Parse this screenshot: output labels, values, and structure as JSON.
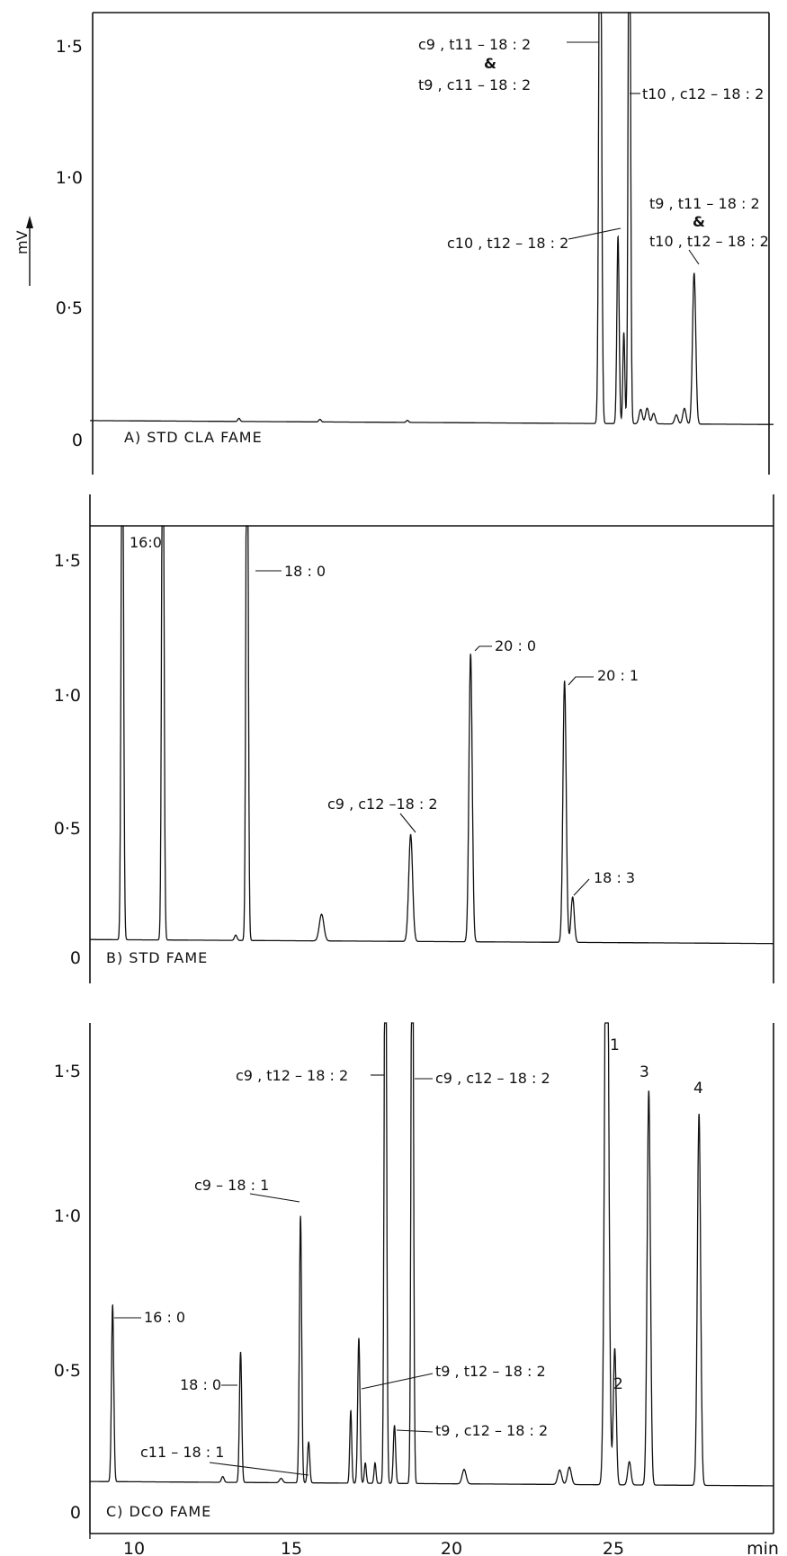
{
  "y_unit_label": "mV",
  "x_unit_label": "min",
  "chart_data": [
    {
      "type": "line",
      "panel_label": "A) STD CLA FAME",
      "ylim": [
        0,
        1.65
      ],
      "y_ticks": [
        "0",
        "0·5",
        "1·0",
        "1·5"
      ],
      "y_tick_values": [
        0,
        0.5,
        1.0,
        1.5
      ],
      "baseline": 0.09,
      "baseline_end": 0.075,
      "peaks": [
        {
          "rt": 13.4,
          "h": 0.012,
          "w": 0.035
        },
        {
          "rt": 15.9,
          "h": 0.01,
          "w": 0.035
        },
        {
          "rt": 18.6,
          "h": 0.008,
          "w": 0.035
        },
        {
          "rt": 24.55,
          "h": 2.5,
          "w": 0.04
        },
        {
          "rt": 25.1,
          "h": 0.72,
          "w": 0.035
        },
        {
          "rt": 25.28,
          "h": 0.35,
          "w": 0.03
        },
        {
          "rt": 25.45,
          "h": 2.4,
          "w": 0.035
        },
        {
          "rt": 25.8,
          "h": 0.055,
          "w": 0.05
        },
        {
          "rt": 26.0,
          "h": 0.06,
          "w": 0.05
        },
        {
          "rt": 26.2,
          "h": 0.04,
          "w": 0.05
        },
        {
          "rt": 26.9,
          "h": 0.035,
          "w": 0.05
        },
        {
          "rt": 27.15,
          "h": 0.06,
          "w": 0.05
        },
        {
          "rt": 27.45,
          "h": 0.58,
          "w": 0.05
        }
      ],
      "annotations": [
        {
          "text": "c9 , t11 – 18 : 2"
        },
        {
          "text": "&"
        },
        {
          "text": "t9 , c11 – 18 : 2"
        },
        {
          "text": "t10 , c12 – 18 : 2"
        },
        {
          "text": "c10 , t12 – 18 : 2"
        },
        {
          "text": "t9 , t11 – 18 : 2"
        },
        {
          "text": "&"
        },
        {
          "text": "t10 , t12 – 18 : 2"
        }
      ]
    },
    {
      "type": "line",
      "panel_label": "B) STD FAME",
      "ylim": [
        0,
        1.62
      ],
      "y_ticks": [
        "0",
        "0·5",
        "1·0",
        "1·5"
      ],
      "y_tick_values": [
        0,
        0.5,
        1.0,
        1.5
      ],
      "baseline": 0.07,
      "baseline_end": 0.055,
      "peaks": [
        {
          "rt": 9.8,
          "h": 2.3,
          "w": 0.035
        },
        {
          "rt": 11.05,
          "h": 2.3,
          "w": 0.035
        },
        {
          "rt": 13.3,
          "h": 0.02,
          "w": 0.04
        },
        {
          "rt": 13.65,
          "h": 2.3,
          "w": 0.035
        },
        {
          "rt": 15.95,
          "h": 0.1,
          "w": 0.07
        },
        {
          "rt": 18.7,
          "h": 0.4,
          "w": 0.06
        },
        {
          "rt": 20.55,
          "h": 1.08,
          "w": 0.05
        },
        {
          "rt": 23.45,
          "h": 0.98,
          "w": 0.05
        },
        {
          "rt": 23.7,
          "h": 0.17,
          "w": 0.05
        }
      ],
      "annotations": [
        {
          "text": "16:0"
        },
        {
          "text": "18 : 0"
        },
        {
          "text": "20 : 0"
        },
        {
          "text": "20 : 1"
        },
        {
          "text": "c9 , c12 –18 : 2"
        },
        {
          "text": "18 : 3"
        }
      ]
    },
    {
      "type": "line",
      "panel_label": "C) DCO FAME",
      "ylim": [
        0,
        1.65
      ],
      "y_ticks": [
        "0",
        "0·5",
        "1·0",
        "1·5"
      ],
      "y_tick_values": [
        0,
        0.5,
        1.0,
        1.5
      ],
      "x_ticks": [
        "10",
        "15",
        "20",
        "25"
      ],
      "x_tick_values": [
        10,
        15,
        20,
        25
      ],
      "xlim": [
        8.8,
        29.9
      ],
      "baseline": 0.105,
      "baseline_end": 0.09,
      "peaks": [
        {
          "rt": 9.5,
          "h": 0.61,
          "w": 0.035
        },
        {
          "rt": 12.9,
          "h": 0.02,
          "w": 0.04
        },
        {
          "rt": 13.45,
          "h": 0.45,
          "w": 0.035
        },
        {
          "rt": 14.7,
          "h": 0.015,
          "w": 0.05
        },
        {
          "rt": 15.3,
          "h": 0.92,
          "w": 0.035
        },
        {
          "rt": 15.55,
          "h": 0.14,
          "w": 0.035
        },
        {
          "rt": 16.85,
          "h": 0.25,
          "w": 0.03
        },
        {
          "rt": 17.1,
          "h": 0.5,
          "w": 0.035
        },
        {
          "rt": 17.3,
          "h": 0.07,
          "w": 0.03
        },
        {
          "rt": 17.6,
          "h": 0.07,
          "w": 0.03
        },
        {
          "rt": 17.92,
          "h": 2.4,
          "w": 0.035
        },
        {
          "rt": 18.2,
          "h": 0.2,
          "w": 0.035
        },
        {
          "rt": 18.75,
          "h": 2.4,
          "w": 0.035
        },
        {
          "rt": 20.35,
          "h": 0.05,
          "w": 0.06
        },
        {
          "rt": 23.3,
          "h": 0.05,
          "w": 0.06
        },
        {
          "rt": 23.6,
          "h": 0.06,
          "w": 0.06
        },
        {
          "rt": 24.75,
          "h": 2.4,
          "w": 0.06
        },
        {
          "rt": 25.0,
          "h": 0.47,
          "w": 0.045
        },
        {
          "rt": 25.45,
          "h": 0.08,
          "w": 0.05
        },
        {
          "rt": 26.05,
          "h": 1.36,
          "w": 0.05
        },
        {
          "rt": 27.6,
          "h": 1.28,
          "w": 0.05
        }
      ],
      "annotations": [
        {
          "text": "16 : 0"
        },
        {
          "text": "18 : 0"
        },
        {
          "text": "c9 – 18 : 1"
        },
        {
          "text": "c11 – 18 : 1"
        },
        {
          "text": "c9 , t12 – 18 : 2"
        },
        {
          "text": "c9 , c12 – 18 : 2"
        },
        {
          "text": "t9 , t12 – 18 : 2"
        },
        {
          "text": "t9 , c12 – 18 : 2"
        },
        {
          "text": "1"
        },
        {
          "text": "2"
        },
        {
          "text": "3"
        },
        {
          "text": "4"
        }
      ]
    }
  ]
}
